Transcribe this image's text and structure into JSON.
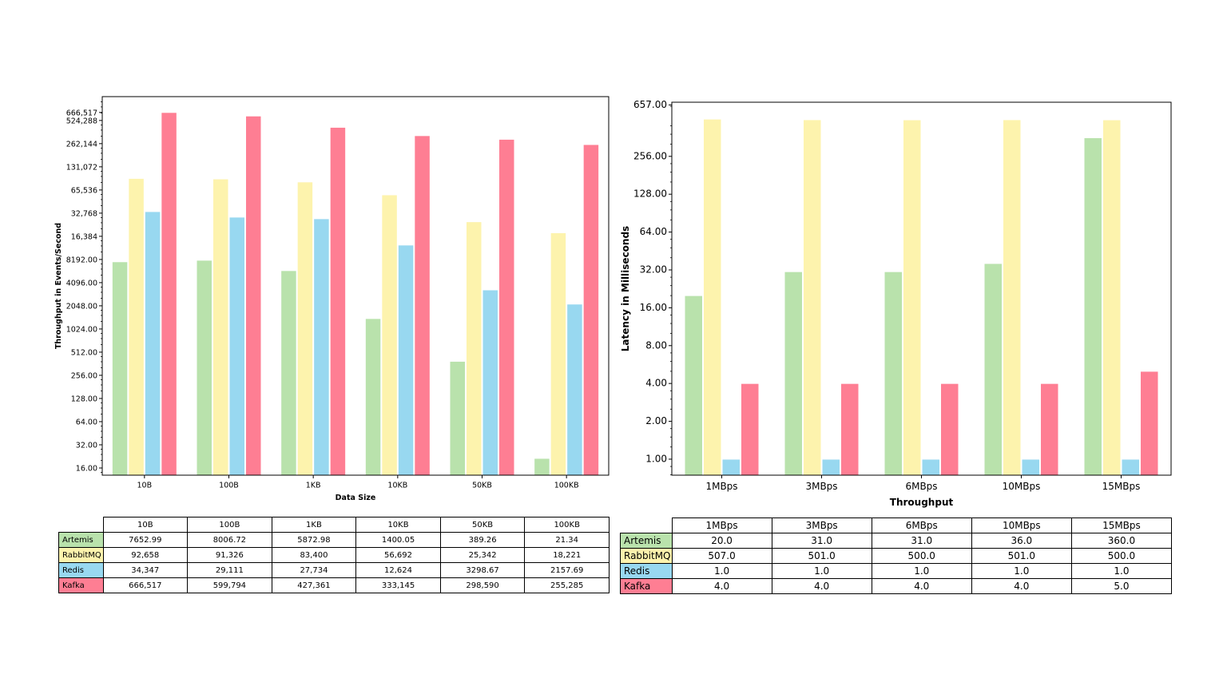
{
  "colors": {
    "Artemis": "#b9e2ac",
    "RabbitMQ": "#fdf3ad",
    "Redis": "#98d8f0",
    "Kafka": "#fe7e93"
  },
  "chart_data": [
    {
      "type": "bar",
      "xlabel": "Data Size",
      "ylabel": "Throughput in Events/Second",
      "yscale": "log2",
      "ylim": [
        12.9,
        1070000
      ],
      "grid": false,
      "yticks": [
        16,
        32,
        64,
        128,
        256,
        512,
        1024,
        2048,
        4096,
        8192,
        16384,
        32768,
        65536,
        131072,
        262144,
        524288,
        666517
      ],
      "ytick_labels": [
        "16.00",
        "32.00",
        "64.00",
        "128.00",
        "256.00",
        "512.00",
        "1024.00",
        "2048.00",
        "4096.00",
        "8192.00",
        "16,384",
        "32,768",
        "65,536",
        "131,072",
        "262,144",
        "524,288",
        "666,517"
      ],
      "categories": [
        "10B",
        "100B",
        "1KB",
        "10KB",
        "50KB",
        "100KB"
      ],
      "series": [
        {
          "name": "Artemis",
          "values": [
            7652.99,
            8006.72,
            5872.98,
            1400.05,
            389.26,
            21.34
          ],
          "labels": [
            "7652.99",
            "8006.72",
            "5872.98",
            "1400.05",
            "389.26",
            "21.34"
          ]
        },
        {
          "name": "RabbitMQ",
          "values": [
            92658,
            91326,
            83400,
            56692,
            25342,
            18221
          ],
          "labels": [
            "92,658",
            "91,326",
            "83,400",
            "56,692",
            "25,342",
            "18,221"
          ]
        },
        {
          "name": "Redis",
          "values": [
            34347,
            29111,
            27734,
            12624,
            3298.67,
            2157.69
          ],
          "labels": [
            "34,347",
            "29,111",
            "27,734",
            "12,624",
            "3298.67",
            "2157.69"
          ]
        },
        {
          "name": "Kafka",
          "values": [
            666517,
            599794,
            427361,
            333145,
            298590,
            255285
          ],
          "labels": [
            "666,517",
            "599,794",
            "427,361",
            "333,145",
            "298,590",
            "255,285"
          ]
        }
      ]
    },
    {
      "type": "bar",
      "xlabel": "Throughput",
      "ylabel": "Latency in Milliseconds",
      "yscale": "log2",
      "ylim": [
        0.746,
        690
      ],
      "grid": false,
      "yticks": [
        1,
        2,
        4,
        8,
        16,
        32,
        64,
        128,
        256,
        657
      ],
      "ytick_labels": [
        "1.00",
        "2.00",
        "4.00",
        "8.00",
        "16.00",
        "32.00",
        "64.00",
        "128.00",
        "256.00",
        "657.00"
      ],
      "categories": [
        "1MBps",
        "3MBps",
        "6MBps",
        "10MBps",
        "15MBps"
      ],
      "series": [
        {
          "name": "Artemis",
          "values": [
            20,
            31,
            31,
            36,
            360
          ],
          "labels": [
            "20.0",
            "31.0",
            "31.0",
            "36.0",
            "360.0"
          ]
        },
        {
          "name": "RabbitMQ",
          "values": [
            507,
            501,
            500,
            501,
            500
          ],
          "labels": [
            "507.0",
            "501.0",
            "500.0",
            "501.0",
            "500.0"
          ]
        },
        {
          "name": "Redis",
          "values": [
            1,
            1,
            1,
            1,
            1
          ],
          "labels": [
            "1.0",
            "1.0",
            "1.0",
            "1.0",
            "1.0"
          ]
        },
        {
          "name": "Kafka",
          "values": [
            4,
            4,
            4,
            4,
            5
          ],
          "labels": [
            "4.0",
            "4.0",
            "4.0",
            "4.0",
            "5.0"
          ]
        }
      ]
    }
  ]
}
